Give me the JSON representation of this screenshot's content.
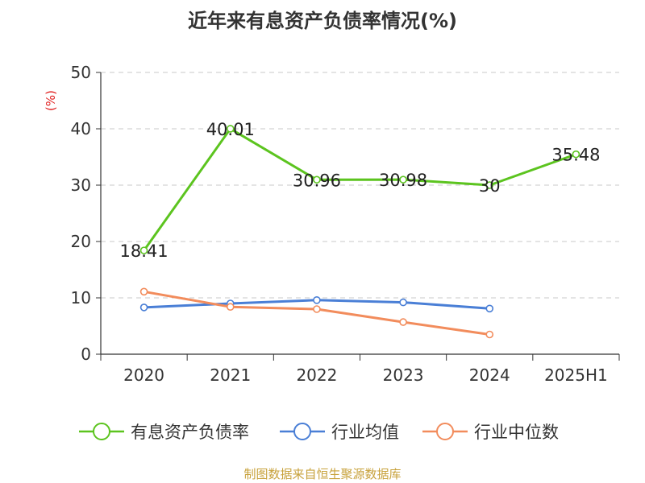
{
  "chart_data": {
    "type": "line",
    "title": "近年来有息资产负债率情况(%)",
    "ylabel": "(%)",
    "xlabel": "",
    "ylim": [
      0,
      50
    ],
    "yticks": [
      0,
      10,
      20,
      30,
      40,
      50
    ],
    "grid": true,
    "legend": "bottom",
    "categories": [
      "2020",
      "2021",
      "2022",
      "2023",
      "2024",
      "2025H1"
    ],
    "series": [
      {
        "name": "有息资产负债率",
        "color": "#5cc41f",
        "values": [
          18.41,
          40.01,
          30.96,
          30.98,
          30,
          35.48
        ],
        "labels": [
          "18.41",
          "40.01",
          "30.96",
          "30.98",
          "30",
          "35.48"
        ]
      },
      {
        "name": "行业均值",
        "color": "#4a7fd6",
        "values": [
          8.3,
          9.0,
          9.6,
          9.2,
          8.1,
          null
        ]
      },
      {
        "name": "行业中位数",
        "color": "#f28c5c",
        "values": [
          11.1,
          8.4,
          8.0,
          5.7,
          3.5,
          null
        ]
      }
    ]
  },
  "source": "制图数据来自恒生聚源数据库"
}
